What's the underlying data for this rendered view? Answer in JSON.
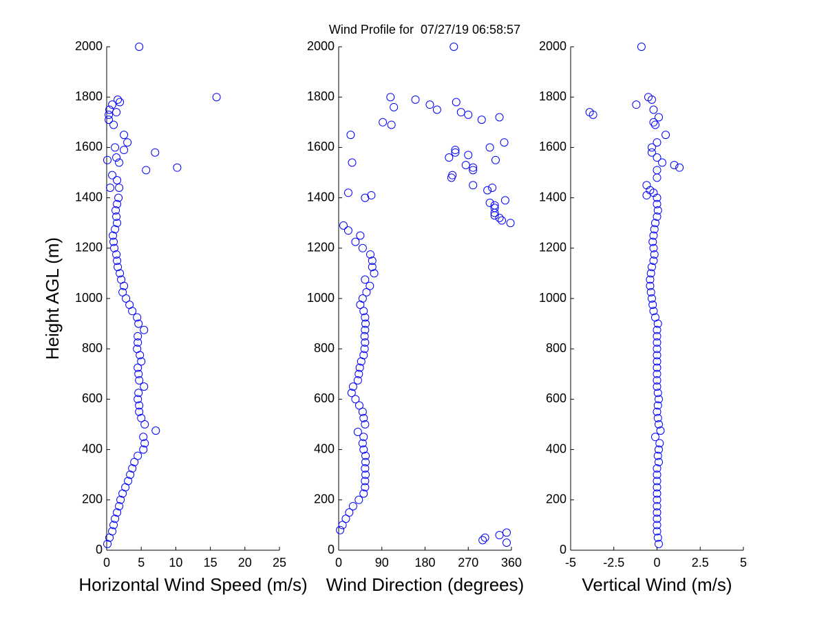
{
  "chart_data": [
    {
      "type": "scatter",
      "title": "Wind Profile for  07/27/19 06:58:57",
      "xlabel": "Horizontal Wind Speed (m/s)",
      "ylabel": "Height AGL (m)",
      "color": "#0000ff",
      "xlim": [
        0,
        25
      ],
      "xticks": [
        0,
        5,
        10,
        15,
        20,
        25
      ],
      "ylim": [
        0,
        2000
      ],
      "yticks": [
        0,
        200,
        400,
        600,
        800,
        1000,
        1200,
        1400,
        1600,
        1800,
        2000
      ],
      "x": [
        0.1,
        0.4,
        0.8,
        1.0,
        1.2,
        1.5,
        1.8,
        2.0,
        2.3,
        2.7,
        3.1,
        3.4,
        3.7,
        4.0,
        4.5,
        5.3,
        5.5,
        5.3,
        7.1,
        5.5,
        5.0,
        4.7,
        4.7,
        4.5,
        4.6,
        5.4,
        4.7,
        4.6,
        4.5,
        5.0,
        4.8,
        4.4,
        4.5,
        4.5,
        5.4,
        4.6,
        4.4,
        3.7,
        3.3,
        2.8,
        2.3,
        2.5,
        2.1,
        1.9,
        1.6,
        1.5,
        1.4,
        1.1,
        1.0,
        0.9,
        1.2,
        1.5,
        1.4,
        1.3,
        1.5,
        1.7,
        1.8,
        0.5,
        1.5,
        0.8,
        0.1,
        1.8,
        1.4,
        1.2,
        2.5,
        3,
        2.5,
        7,
        5.7,
        10.2,
        1,
        0.3,
        0.3,
        0.4,
        1.4,
        1.6,
        1.9,
        15.9,
        4.7,
        0.8
      ],
      "y": [
        25,
        50,
        75,
        100,
        125,
        150,
        175,
        200,
        225,
        250,
        275,
        300,
        325,
        350,
        375,
        400,
        425,
        450,
        475,
        500,
        525,
        550,
        575,
        600,
        625,
        650,
        675,
        700,
        725,
        750,
        775,
        800,
        825,
        850,
        875,
        900,
        925,
        950,
        975,
        1000,
        1025,
        1050,
        1075,
        1100,
        1125,
        1150,
        1175,
        1200,
        1225,
        1250,
        1275,
        1300,
        1325,
        1350,
        1375,
        1400,
        1440,
        1440,
        1470,
        1490,
        1550,
        1540,
        1560,
        1600,
        1590,
        1620,
        1650,
        1580,
        1510,
        1520,
        1690,
        1710,
        1730,
        1750,
        1740,
        1790,
        1780,
        1800,
        2000,
        1770
      ]
    },
    {
      "type": "scatter",
      "xlabel": "Wind Direction (degrees)",
      "color": "#0000ff",
      "xlim": [
        0,
        360
      ],
      "xticks": [
        0,
        90,
        180,
        270,
        360
      ],
      "ylim": [
        0,
        2000
      ],
      "yticks": [
        0,
        200,
        400,
        600,
        800,
        1000,
        1200,
        1400,
        1600,
        1800,
        2000
      ],
      "x": [
        3,
        8,
        15,
        22,
        30,
        42,
        52,
        55,
        55,
        56,
        55,
        56,
        56,
        52,
        50,
        52,
        40,
        55,
        52,
        50,
        43,
        35,
        27,
        30,
        40,
        42,
        44,
        47,
        52,
        54,
        55,
        54,
        55,
        56,
        55,
        52,
        45,
        50,
        58,
        65,
        55,
        74,
        70,
        70,
        66,
        50,
        35,
        45,
        20,
        10,
        300,
        305,
        335,
        350,
        350,
        20,
        55,
        68,
        28,
        25,
        92,
        110,
        108,
        115,
        160,
        190,
        205,
        245,
        255,
        270,
        298,
        335,
        243,
        243,
        230,
        265,
        270,
        280,
        280,
        235,
        237,
        280,
        310,
        320,
        315,
        327,
        345,
        347,
        315,
        325,
        325,
        325,
        325,
        335,
        340,
        358,
        240
      ],
      "y": [
        80,
        100,
        125,
        150,
        175,
        200,
        225,
        250,
        275,
        300,
        325,
        350,
        375,
        400,
        425,
        450,
        470,
        500,
        525,
        550,
        575,
        600,
        625,
        650,
        675,
        700,
        725,
        750,
        775,
        800,
        825,
        850,
        875,
        900,
        925,
        950,
        975,
        1000,
        1025,
        1050,
        1075,
        1100,
        1125,
        1150,
        1175,
        1200,
        1225,
        1250,
        1270,
        1290,
        40,
        50,
        60,
        70,
        30,
        1420,
        1400,
        1410,
        1540,
        1650,
        1700,
        1690,
        1800,
        1760,
        1790,
        1770,
        1750,
        1780,
        1740,
        1730,
        1710,
        1720,
        1580,
        1590,
        1560,
        1530,
        1570,
        1520,
        1510,
        1480,
        1490,
        1450,
        1430,
        1440,
        1600,
        1550,
        1620,
        1390,
        1380,
        1370,
        1360,
        1340,
        1330,
        1320,
        1310,
        1300,
        2000
      ]
    },
    {
      "type": "scatter",
      "xlabel": "Vertical Wind (m/s)",
      "color": "#0000ff",
      "xlim": [
        -5,
        5
      ],
      "xticks": [
        -5,
        -2.5,
        0,
        2.5,
        5
      ],
      "ylim": [
        0,
        2000
      ],
      "yticks": [
        0,
        200,
        400,
        600,
        800,
        1000,
        1200,
        1400,
        1600,
        1800,
        2000
      ],
      "x": [
        0.1,
        0.05,
        0,
        0,
        0,
        0,
        0,
        0,
        0,
        0,
        0,
        0,
        0,
        0.1,
        0.05,
        0.1,
        0.15,
        -0.1,
        0.2,
        0.1,
        0.05,
        0,
        0.05,
        0.1,
        0.05,
        0,
        0,
        0,
        0,
        0,
        0,
        0,
        0,
        0,
        0,
        0.05,
        -0.1,
        -0.2,
        -0.25,
        -0.3,
        -0.35,
        -0.4,
        -0.4,
        -0.35,
        -0.3,
        -0.2,
        -0.15,
        -0.2,
        -0.25,
        -0.2,
        -0.15,
        -0.1,
        0,
        0.05,
        0,
        0,
        -3.9,
        -3.7,
        -1.2,
        -0.5,
        -0.3,
        -0.2,
        0.1,
        -0.2,
        -0.1,
        0.5,
        0,
        -0.3,
        -0.3,
        0,
        0.3,
        1,
        1.3,
        0,
        0,
        -0.6,
        -0.4,
        -0.2,
        -0.6,
        -0.9
      ],
      "y": [
        25,
        50,
        75,
        100,
        125,
        150,
        175,
        200,
        225,
        250,
        275,
        300,
        325,
        350,
        375,
        400,
        425,
        450,
        475,
        500,
        525,
        550,
        575,
        600,
        625,
        650,
        675,
        700,
        725,
        750,
        775,
        800,
        825,
        850,
        875,
        900,
        925,
        950,
        975,
        1000,
        1025,
        1050,
        1075,
        1100,
        1125,
        1150,
        1175,
        1200,
        1225,
        1250,
        1275,
        1300,
        1325,
        1350,
        1375,
        1400,
        1740,
        1730,
        1770,
        1800,
        1790,
        1750,
        1720,
        1700,
        1690,
        1650,
        1620,
        1600,
        1580,
        1560,
        1540,
        1530,
        1520,
        1510,
        1480,
        1450,
        1430,
        1420,
        1410,
        2000
      ]
    }
  ]
}
